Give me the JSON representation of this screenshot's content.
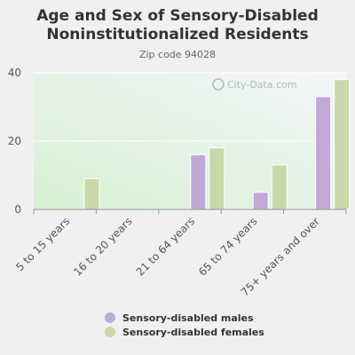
{
  "chart_data": {
    "type": "bar",
    "title": "Age and Sex of Sensory-Disabled Noninstitutionalized Residents",
    "subtitle": "Zip code 94028",
    "watermark": "City-Data.com",
    "categories": [
      "5 to 15 years",
      "16 to 20 years",
      "21 to 64 years",
      "65 to 74 years",
      "75+ years and over"
    ],
    "series": [
      {
        "name": "Sensory-disabled males",
        "values": [
          0,
          0,
          16,
          5,
          33
        ],
        "color": "#c0a8d8"
      },
      {
        "name": "Sensory-disabled females",
        "values": [
          9,
          0,
          18,
          13,
          38
        ],
        "color": "#c8d8a8"
      }
    ],
    "ylim": [
      0,
      40
    ],
    "yticks": [
      0,
      20,
      40
    ],
    "xlabel": "",
    "ylabel": "",
    "grid": true,
    "legend": "bottom"
  }
}
